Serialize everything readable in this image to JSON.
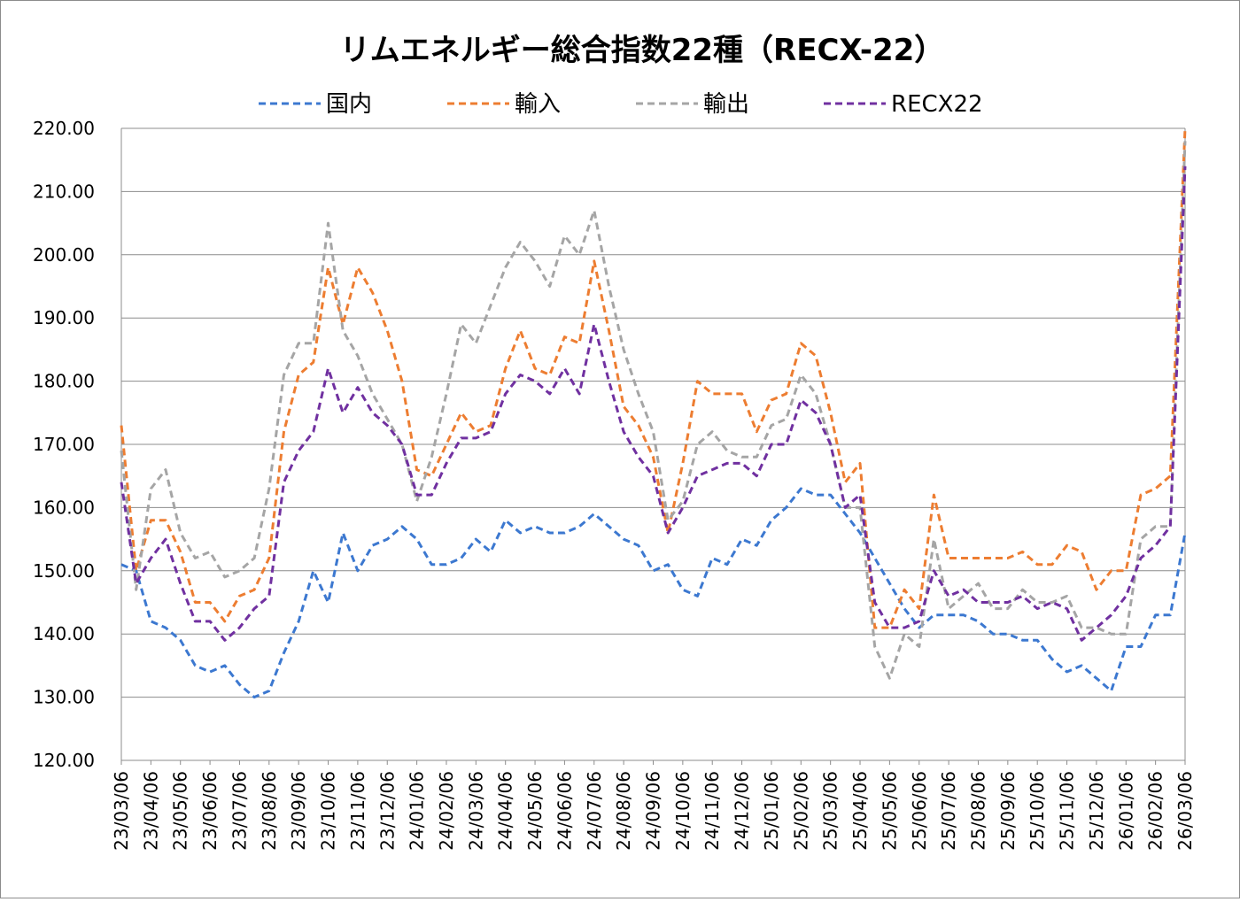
{
  "chart_data": {
    "type": "line",
    "title": "リムエネルギー総合指数22種（RECX-22）",
    "xlabel": "",
    "ylabel": "",
    "ylim": [
      120,
      220
    ],
    "yticks": [
      "120.00",
      "130.00",
      "140.00",
      "150.00",
      "160.00",
      "170.00",
      "180.00",
      "190.00",
      "200.00",
      "210.00",
      "220.00"
    ],
    "grid": true,
    "legend_position": "top",
    "x_tick_labels": [
      "23/03/06",
      "23/04/06",
      "23/05/06",
      "23/06/06",
      "23/07/06",
      "23/08/06",
      "23/09/06",
      "23/10/06",
      "23/11/06",
      "23/12/06",
      "24/01/06",
      "24/02/06",
      "24/03/06",
      "24/04/06",
      "24/05/06",
      "24/06/06",
      "24/07/06",
      "24/08/06",
      "24/09/06",
      "24/10/06",
      "24/11/06",
      "24/12/06",
      "25/01/06",
      "25/02/06",
      "25/03/06",
      "25/04/06",
      "25/05/06",
      "25/06/06",
      "25/07/06",
      "25/08/06",
      "25/09/06",
      "25/10/06",
      "25/11/06",
      "25/12/06",
      "26/01/06",
      "26/02/06",
      "26/03/06"
    ],
    "x_step_months": 0.5,
    "series": [
      {
        "name": "国内",
        "color": "#3C78D0",
        "values": [
          151,
          150,
          142,
          141,
          139,
          135,
          134,
          135,
          132,
          130,
          131,
          137,
          142,
          150,
          145,
          156,
          150,
          154,
          155,
          157,
          155,
          151,
          151,
          152,
          155,
          153,
          158,
          156,
          157,
          156,
          156,
          157,
          159,
          157,
          155,
          154,
          150,
          151,
          147,
          146,
          152,
          151,
          155,
          154,
          158,
          160,
          163,
          162,
          162,
          159,
          156,
          152,
          148,
          144,
          141,
          143,
          143,
          143,
          142,
          140,
          140,
          139,
          139,
          136,
          134,
          135,
          133,
          131,
          138,
          138,
          143,
          143,
          156
        ]
      },
      {
        "name": "輸入",
        "color": "#ED7D31",
        "values": [
          173,
          150,
          158,
          158,
          153,
          145,
          145,
          142,
          146,
          147,
          152,
          172,
          181,
          183,
          198,
          189,
          198,
          194,
          188,
          180,
          166,
          165,
          170,
          175,
          172,
          173,
          182,
          188,
          182,
          181,
          187,
          186,
          199,
          188,
          176,
          173,
          168,
          156,
          167,
          180,
          178,
          178,
          178,
          172,
          177,
          178,
          186,
          184,
          175,
          164,
          167,
          141,
          141,
          147,
          144,
          162,
          152,
          152,
          152,
          152,
          152,
          153,
          151,
          151,
          154,
          153,
          147,
          150,
          150,
          162,
          163,
          165,
          220
        ]
      },
      {
        "name": "輸出",
        "color": "#A5A5A5",
        "values": [
          169,
          147,
          163,
          166,
          156,
          152,
          153,
          149,
          150,
          152,
          163,
          181,
          186,
          186,
          205,
          188,
          184,
          178,
          174,
          170,
          161,
          168,
          178,
          189,
          186,
          192,
          198,
          202,
          199,
          195,
          203,
          200,
          207,
          195,
          185,
          178,
          172,
          158,
          161,
          170,
          172,
          169,
          168,
          168,
          173,
          174,
          181,
          178,
          170,
          160,
          160,
          138,
          133,
          140,
          138,
          155,
          144,
          146,
          148,
          144,
          144,
          147,
          145,
          145,
          146,
          141,
          141,
          140,
          140,
          155,
          157,
          157,
          218
        ]
      },
      {
        "name": "RECX22",
        "color": "#7030A0",
        "values": [
          164,
          148,
          152,
          155,
          148,
          142,
          142,
          139,
          141,
          144,
          146,
          164,
          169,
          172,
          182,
          175,
          179,
          175,
          173,
          170,
          162,
          162,
          167,
          171,
          171,
          172,
          178,
          181,
          180,
          178,
          182,
          178,
          189,
          180,
          172,
          168,
          165,
          156,
          160,
          165,
          166,
          167,
          167,
          165,
          170,
          170,
          177,
          175,
          170,
          160,
          162,
          145,
          141,
          141,
          142,
          150,
          146,
          147,
          145,
          145,
          145,
          146,
          144,
          145,
          144,
          139,
          141,
          143,
          146,
          152,
          154,
          157,
          214
        ]
      }
    ]
  }
}
